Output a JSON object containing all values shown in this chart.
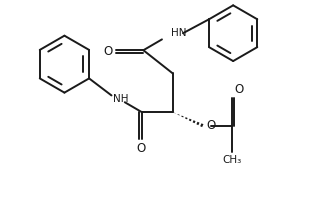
{
  "background_color": "#ffffff",
  "line_color": "#1a1a1a",
  "line_width": 1.4,
  "fig_width": 3.27,
  "fig_height": 2.15,
  "dpi": 100,
  "xlim": [
    0,
    10.5
  ],
  "ylim": [
    0,
    6.9
  ]
}
